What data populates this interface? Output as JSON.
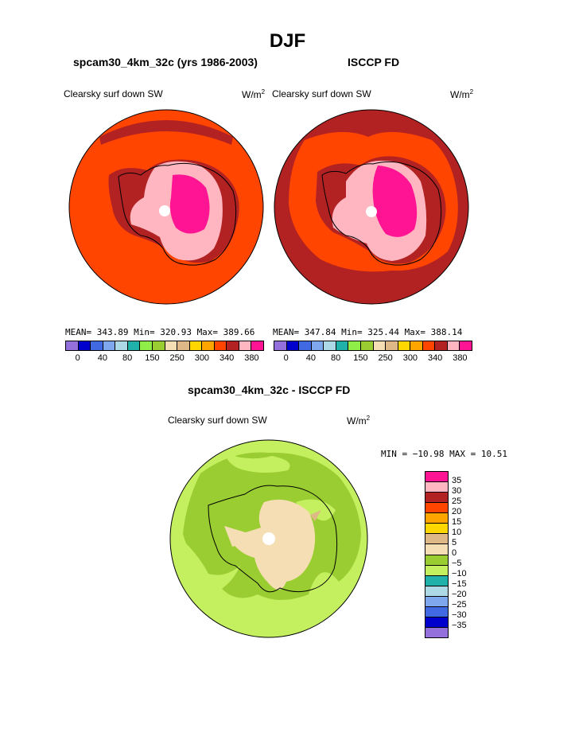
{
  "title": "DJF",
  "units_base": "W/m",
  "units_exp": "2",
  "variable": "Clearsky surf down SW",
  "palette": [
    "#9370db",
    "#0000cd",
    "#4169e1",
    "#7fa7ee",
    "#add8e6",
    "#20b2aa",
    "#90ee48",
    "#9acd32",
    "#f5deb3",
    "#deb887",
    "#ffd700",
    "#ffa500",
    "#ff4500",
    "#b22222",
    "#ffb6c1",
    "#ff1493"
  ],
  "top_ticks": [
    "0",
    "40",
    "80",
    "150",
    "250",
    "300",
    "340",
    "380"
  ],
  "panel_left": {
    "title": "spcam30_4km_32c (yrs 1986-2003)",
    "stats": "MEAN= 343.89  Min= 320.93  Max= 389.66"
  },
  "panel_right": {
    "title": "ISCCP FD",
    "stats": "MEAN= 347.84  Min= 325.44  Max= 388.14"
  },
  "panel_diff": {
    "title": "spcam30_4km_32c - ISCCP FD",
    "stats": "MIN = −10.98 MAX =   10.51",
    "legend_labels": [
      "35",
      "30",
      "25",
      "20",
      "15",
      "10",
      "5",
      "0",
      "−5",
      "−10",
      "−15",
      "−20",
      "−25",
      "−30",
      "−35"
    ],
    "legend_colors": [
      "#ff1493",
      "#ffb6c1",
      "#b22222",
      "#ff4500",
      "#ffa500",
      "#ffd700",
      "#deb887",
      "#f5deb3",
      "#9acd32",
      "#c4f060",
      "#20b2aa",
      "#add8e6",
      "#7fa7ee",
      "#4169e1",
      "#0000cd",
      "#9370db"
    ]
  }
}
